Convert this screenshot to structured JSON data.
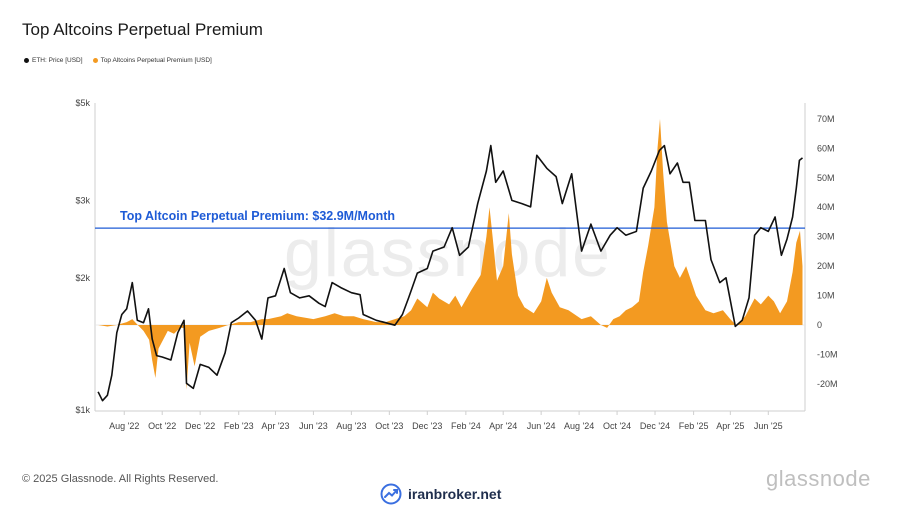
{
  "title": "Top Altcoins Perpetual Premium",
  "legend": [
    {
      "name": "ETH: Price [USD]",
      "color": "#111111"
    },
    {
      "name": "Top Altcoins Perpetual Premium [USD]",
      "color": "#f39a21"
    }
  ],
  "footer": {
    "copyright": "© 2025 Glassnode. All Rights Reserved.",
    "brand": "glassnode",
    "site": "iranbroker.net"
  },
  "watermark": "glassnode",
  "chart_data": {
    "type": "line",
    "x_ticks": [
      "Aug '22",
      "Oct '22",
      "Dec '22",
      "Feb '23",
      "Apr '23",
      "Jun '23",
      "Aug '23",
      "Oct '23",
      "Dec '23",
      "Feb '24",
      "Apr '24",
      "Jun '24",
      "Aug '24",
      "Oct '24",
      "Dec '24",
      "Feb '25",
      "Apr '25",
      "Jun '25"
    ],
    "y_left_ticks": [
      "$5k",
      "$3k",
      "$2k",
      "$1k"
    ],
    "y_left_values": [
      5000,
      3000,
      2000,
      1000
    ],
    "y_left_scale": "log",
    "y_right_ticks": [
      "70M",
      "60M",
      "50M",
      "40M",
      "30M",
      "20M",
      "10M",
      "0",
      "-10M",
      "-20M"
    ],
    "y_right_values": [
      70,
      60,
      50,
      40,
      30,
      20,
      10,
      0,
      -10,
      -20
    ],
    "threshold": {
      "value": 32.9,
      "label": "Top Altcoin Perpetual Premium: $32.9M/Month",
      "color": "#1e5bd6"
    },
    "series": [
      {
        "name": "ETH: Price [USD]",
        "color": "#111111",
        "axis": "left",
        "points": [
          [
            "2022-06-20",
            1100
          ],
          [
            "2022-06-27",
            1050
          ],
          [
            "2022-07-05",
            1080
          ],
          [
            "2022-07-12",
            1200
          ],
          [
            "2022-07-20",
            1500
          ],
          [
            "2022-07-28",
            1650
          ],
          [
            "2022-08-05",
            1700
          ],
          [
            "2022-08-14",
            1950
          ],
          [
            "2022-08-22",
            1600
          ],
          [
            "2022-09-01",
            1580
          ],
          [
            "2022-09-09",
            1700
          ],
          [
            "2022-09-15",
            1450
          ],
          [
            "2022-09-22",
            1330
          ],
          [
            "2022-10-01",
            1320
          ],
          [
            "2022-10-15",
            1300
          ],
          [
            "2022-10-26",
            1500
          ],
          [
            "2022-11-05",
            1600
          ],
          [
            "2022-11-09",
            1150
          ],
          [
            "2022-11-20",
            1120
          ],
          [
            "2022-12-01",
            1270
          ],
          [
            "2022-12-15",
            1250
          ],
          [
            "2022-12-28",
            1200
          ],
          [
            "2023-01-10",
            1350
          ],
          [
            "2023-01-20",
            1580
          ],
          [
            "2023-02-01",
            1620
          ],
          [
            "2023-02-15",
            1680
          ],
          [
            "2023-02-28",
            1600
          ],
          [
            "2023-03-10",
            1450
          ],
          [
            "2023-03-20",
            1800
          ],
          [
            "2023-04-01",
            1820
          ],
          [
            "2023-04-15",
            2100
          ],
          [
            "2023-04-25",
            1850
          ],
          [
            "2023-05-10",
            1800
          ],
          [
            "2023-05-25",
            1820
          ],
          [
            "2023-06-10",
            1750
          ],
          [
            "2023-06-20",
            1720
          ],
          [
            "2023-07-01",
            1950
          ],
          [
            "2023-07-15",
            1900
          ],
          [
            "2023-08-01",
            1850
          ],
          [
            "2023-08-15",
            1830
          ],
          [
            "2023-08-20",
            1650
          ],
          [
            "2023-09-10",
            1600
          ],
          [
            "2023-09-25",
            1580
          ],
          [
            "2023-10-10",
            1560
          ],
          [
            "2023-10-22",
            1650
          ],
          [
            "2023-11-01",
            1800
          ],
          [
            "2023-11-15",
            2050
          ],
          [
            "2023-12-01",
            2100
          ],
          [
            "2023-12-10",
            2300
          ],
          [
            "2023-12-28",
            2350
          ],
          [
            "2024-01-10",
            2600
          ],
          [
            "2024-01-22",
            2250
          ],
          [
            "2024-02-05",
            2350
          ],
          [
            "2024-02-20",
            2950
          ],
          [
            "2024-03-05",
            3500
          ],
          [
            "2024-03-12",
            4000
          ],
          [
            "2024-03-20",
            3300
          ],
          [
            "2024-04-01",
            3500
          ],
          [
            "2024-04-15",
            3000
          ],
          [
            "2024-05-01",
            2950
          ],
          [
            "2024-05-15",
            2900
          ],
          [
            "2024-05-25",
            3800
          ],
          [
            "2024-06-10",
            3550
          ],
          [
            "2024-06-25",
            3400
          ],
          [
            "2024-07-05",
            2950
          ],
          [
            "2024-07-20",
            3450
          ],
          [
            "2024-08-05",
            2300
          ],
          [
            "2024-08-20",
            2650
          ],
          [
            "2024-09-05",
            2300
          ],
          [
            "2024-09-20",
            2500
          ],
          [
            "2024-10-01",
            2600
          ],
          [
            "2024-10-15",
            2500
          ],
          [
            "2024-11-01",
            2550
          ],
          [
            "2024-11-12",
            3200
          ],
          [
            "2024-11-25",
            3500
          ],
          [
            "2024-12-08",
            3900
          ],
          [
            "2024-12-16",
            4000
          ],
          [
            "2024-12-25",
            3450
          ],
          [
            "2025-01-06",
            3650
          ],
          [
            "2025-01-15",
            3300
          ],
          [
            "2025-01-25",
            3300
          ],
          [
            "2025-02-03",
            2700
          ],
          [
            "2025-02-20",
            2700
          ],
          [
            "2025-03-01",
            2200
          ],
          [
            "2025-03-15",
            1950
          ],
          [
            "2025-03-25",
            2000
          ],
          [
            "2025-04-09",
            1550
          ],
          [
            "2025-04-20",
            1600
          ],
          [
            "2025-05-01",
            1800
          ],
          [
            "2025-05-10",
            2500
          ],
          [
            "2025-05-20",
            2600
          ],
          [
            "2025-06-01",
            2550
          ],
          [
            "2025-06-12",
            2750
          ],
          [
            "2025-06-22",
            2250
          ],
          [
            "2025-07-01",
            2450
          ],
          [
            "2025-07-10",
            2750
          ],
          [
            "2025-07-16",
            3200
          ],
          [
            "2025-07-21",
            3700
          ],
          [
            "2025-07-26",
            3750
          ]
        ]
      },
      {
        "name": "Top Altcoins Perpetual Premium [USD]",
        "color": "#f39a21",
        "axis": "right",
        "points": [
          [
            "2022-06-20",
            0
          ],
          [
            "2022-07-05",
            -0.5
          ],
          [
            "2022-07-20",
            0
          ],
          [
            "2022-08-05",
            1
          ],
          [
            "2022-08-14",
            2
          ],
          [
            "2022-08-25",
            -0.5
          ],
          [
            "2022-09-01",
            -2
          ],
          [
            "2022-09-10",
            -5
          ],
          [
            "2022-09-15",
            -12
          ],
          [
            "2022-09-20",
            -18
          ],
          [
            "2022-09-25",
            -8
          ],
          [
            "2022-10-10",
            -2
          ],
          [
            "2022-10-20",
            -3
          ],
          [
            "2022-10-30",
            -1
          ],
          [
            "2022-11-05",
            -1
          ],
          [
            "2022-11-09",
            -22
          ],
          [
            "2022-11-14",
            -6
          ],
          [
            "2022-11-22",
            -14
          ],
          [
            "2022-12-01",
            -4
          ],
          [
            "2022-12-15",
            -2
          ],
          [
            "2023-01-01",
            -1
          ],
          [
            "2023-01-15",
            0
          ],
          [
            "2023-02-01",
            1
          ],
          [
            "2023-02-20",
            1
          ],
          [
            "2023-03-10",
            2
          ],
          [
            "2023-03-20",
            2
          ],
          [
            "2023-04-10",
            3
          ],
          [
            "2023-04-20",
            4
          ],
          [
            "2023-05-05",
            3
          ],
          [
            "2023-06-01",
            2
          ],
          [
            "2023-06-20",
            3
          ],
          [
            "2023-07-05",
            4
          ],
          [
            "2023-07-20",
            3
          ],
          [
            "2023-08-05",
            3
          ],
          [
            "2023-08-20",
            2
          ],
          [
            "2023-09-10",
            1
          ],
          [
            "2023-09-25",
            1
          ],
          [
            "2023-10-10",
            2
          ],
          [
            "2023-10-25",
            3
          ],
          [
            "2023-11-05",
            5
          ],
          [
            "2023-11-15",
            9
          ],
          [
            "2023-12-01",
            6
          ],
          [
            "2023-12-10",
            11
          ],
          [
            "2023-12-20",
            9
          ],
          [
            "2024-01-05",
            7
          ],
          [
            "2024-01-15",
            10
          ],
          [
            "2024-01-25",
            6
          ],
          [
            "2024-02-10",
            12
          ],
          [
            "2024-02-25",
            17
          ],
          [
            "2024-03-05",
            30
          ],
          [
            "2024-03-10",
            40
          ],
          [
            "2024-03-15",
            30
          ],
          [
            "2024-03-22",
            15
          ],
          [
            "2024-04-01",
            20
          ],
          [
            "2024-04-10",
            38
          ],
          [
            "2024-04-15",
            24
          ],
          [
            "2024-04-25",
            10
          ],
          [
            "2024-05-05",
            6
          ],
          [
            "2024-05-20",
            4
          ],
          [
            "2024-06-01",
            8
          ],
          [
            "2024-06-10",
            16
          ],
          [
            "2024-06-18",
            11
          ],
          [
            "2024-07-01",
            6
          ],
          [
            "2024-07-15",
            5
          ],
          [
            "2024-08-05",
            2
          ],
          [
            "2024-08-20",
            3
          ],
          [
            "2024-09-05",
            0
          ],
          [
            "2024-09-15",
            -1
          ],
          [
            "2024-09-25",
            2
          ],
          [
            "2024-10-05",
            3
          ],
          [
            "2024-10-15",
            5
          ],
          [
            "2024-10-25",
            6
          ],
          [
            "2024-11-05",
            8
          ],
          [
            "2024-11-12",
            18
          ],
          [
            "2024-11-20",
            27
          ],
          [
            "2024-11-30",
            40
          ],
          [
            "2024-12-05",
            60
          ],
          [
            "2024-12-09",
            70
          ],
          [
            "2024-12-14",
            52
          ],
          [
            "2024-12-20",
            35
          ],
          [
            "2025-01-01",
            20
          ],
          [
            "2025-01-10",
            16
          ],
          [
            "2025-01-20",
            20
          ],
          [
            "2025-01-28",
            15
          ],
          [
            "2025-02-05",
            10
          ],
          [
            "2025-02-20",
            5
          ],
          [
            "2025-03-05",
            4
          ],
          [
            "2025-03-20",
            5
          ],
          [
            "2025-04-01",
            2
          ],
          [
            "2025-04-10",
            0
          ],
          [
            "2025-04-25",
            3
          ],
          [
            "2025-05-10",
            9
          ],
          [
            "2025-05-20",
            7
          ],
          [
            "2025-06-01",
            10
          ],
          [
            "2025-06-10",
            8
          ],
          [
            "2025-06-20",
            4
          ],
          [
            "2025-07-01",
            8
          ],
          [
            "2025-07-10",
            18
          ],
          [
            "2025-07-16",
            28
          ],
          [
            "2025-07-22",
            32
          ],
          [
            "2025-07-26",
            20
          ]
        ]
      }
    ]
  }
}
